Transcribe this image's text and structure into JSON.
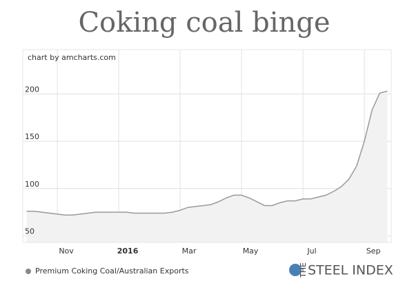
{
  "chart_data": {
    "type": "line",
    "title": "Coking coal binge",
    "credit": "chart by amcharts.com",
    "series": [
      {
        "name": "Premium Coking Coal/Australian Exports",
        "color": "#999999",
        "fill": "#f2f2f2",
        "values": [
          76,
          76,
          75,
          74,
          73,
          72,
          72,
          73,
          74,
          75,
          75,
          75,
          75,
          75,
          74,
          74,
          74,
          74,
          74,
          75,
          77,
          80,
          81,
          82,
          83,
          86,
          90,
          93,
          93,
          90,
          86,
          82,
          82,
          85,
          87,
          87,
          89,
          89,
          91,
          93,
          97,
          102,
          110,
          124,
          150,
          183,
          201,
          203
        ]
      }
    ],
    "categories": [
      null,
      null,
      null,
      null,
      "Nov",
      null,
      null,
      null,
      null,
      null,
      null,
      null,
      "2016",
      null,
      null,
      null,
      null,
      null,
      null,
      null,
      "Mar",
      null,
      null,
      null,
      null,
      null,
      null,
      null,
      "May",
      null,
      null,
      null,
      null,
      null,
      null,
      null,
      "Jul",
      null,
      null,
      null,
      null,
      null,
      null,
      null,
      "Sep",
      null,
      null,
      null
    ],
    "ylim": [
      43,
      247
    ],
    "yticks": [
      50,
      100,
      150,
      200
    ],
    "grid": true,
    "logo": {
      "prefix": "THE",
      "name": "STEEL INDEX"
    }
  }
}
